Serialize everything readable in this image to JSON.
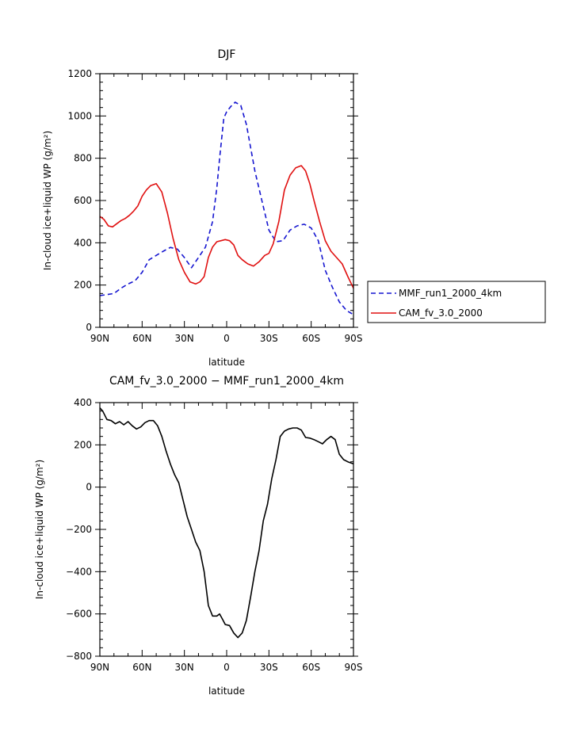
{
  "chart_data": [
    {
      "type": "line",
      "title": "DJF",
      "xlabel": "latitude",
      "ylabel": "In-cloud ice+liquid WP (g/m²)",
      "xlim": [
        90,
        -90
      ],
      "ylim": [
        0,
        1200
      ],
      "x_ticks": [
        {
          "value": 90,
          "label": "90N"
        },
        {
          "value": 60,
          "label": "60N"
        },
        {
          "value": 30,
          "label": "30N"
        },
        {
          "value": 0,
          "label": "0"
        },
        {
          "value": -30,
          "label": "30S"
        },
        {
          "value": -60,
          "label": "60S"
        },
        {
          "value": -90,
          "label": "90S"
        }
      ],
      "y_ticks": [
        0,
        200,
        400,
        600,
        800,
        1000,
        1200
      ],
      "legend_position": "right",
      "series": [
        {
          "name": "MMF_run1_2000_4km",
          "color": "#1515d0",
          "dash": "dashed",
          "x": [
            90,
            85,
            80,
            75,
            70,
            65,
            60,
            55,
            50,
            45,
            40,
            35,
            30,
            25,
            20,
            15,
            10,
            7,
            5,
            2,
            0,
            -3,
            -6,
            -10,
            -14,
            -20,
            -25,
            -30,
            -35,
            -40,
            -45,
            -50,
            -55,
            -60,
            -65,
            -70,
            -75,
            -80,
            -85,
            -90
          ],
          "y": [
            150,
            155,
            160,
            185,
            205,
            220,
            260,
            320,
            340,
            360,
            378,
            370,
            330,
            282,
            330,
            380,
            500,
            660,
            800,
            990,
            1020,
            1045,
            1065,
            1050,
            960,
            740,
            600,
            460,
            405,
            410,
            460,
            480,
            488,
            470,
            410,
            270,
            190,
            120,
            80,
            60
          ]
        },
        {
          "name": "CAM_fv_3.0_2000",
          "color": "#e01010",
          "dash": "solid",
          "x": [
            90,
            87,
            84,
            81,
            78,
            75,
            72,
            69,
            66,
            63,
            60,
            57,
            54,
            50,
            46,
            42,
            38,
            34,
            30,
            26,
            22,
            19,
            16,
            13,
            10,
            7,
            4,
            1,
            -2,
            -5,
            -8,
            -11,
            -15,
            -19,
            -23,
            -27,
            -30,
            -33,
            -37,
            -41,
            -45,
            -49,
            -53,
            -56,
            -59,
            -62,
            -66,
            -70,
            -74,
            -78,
            -82,
            -86,
            -90
          ],
          "y": [
            525,
            510,
            480,
            475,
            490,
            505,
            515,
            530,
            550,
            575,
            620,
            650,
            670,
            680,
            640,
            540,
            420,
            320,
            260,
            215,
            205,
            215,
            240,
            330,
            380,
            405,
            410,
            415,
            410,
            390,
            340,
            320,
            300,
            290,
            310,
            340,
            350,
            395,
            500,
            650,
            720,
            755,
            765,
            740,
            680,
            600,
            500,
            410,
            360,
            330,
            300,
            240,
            185
          ]
        }
      ]
    },
    {
      "type": "line",
      "title": "CAM_fv_3.0_2000 − MMF_run1_2000_4km",
      "xlabel": "latitude",
      "ylabel": "In-cloud ice+liquid WP (g/m²)",
      "xlim": [
        90,
        -90
      ],
      "ylim": [
        -800,
        400
      ],
      "x_ticks": [
        {
          "value": 90,
          "label": "90N"
        },
        {
          "value": 60,
          "label": "60N"
        },
        {
          "value": 30,
          "label": "30N"
        },
        {
          "value": 0,
          "label": "0"
        },
        {
          "value": -30,
          "label": "30S"
        },
        {
          "value": -60,
          "label": "60S"
        },
        {
          "value": -90,
          "label": "90S"
        }
      ],
      "y_ticks": [
        -800,
        -600,
        -400,
        -200,
        0,
        200,
        400
      ],
      "series": [
        {
          "color": "#000000",
          "dash": "solid",
          "x": [
            90,
            88,
            85,
            82,
            79,
            76,
            73,
            70,
            67,
            64,
            61,
            58,
            55,
            52,
            49,
            46,
            43,
            40,
            37,
            34,
            31,
            28,
            25,
            22,
            19,
            16,
            13,
            10,
            7,
            5,
            3,
            1,
            -2,
            -5,
            -8,
            -11,
            -14,
            -17,
            -20,
            -23,
            -26,
            -29,
            -32,
            -35,
            -38,
            -41,
            -44,
            -47,
            -50,
            -53,
            -56,
            -59,
            -62,
            -65,
            -68,
            -71,
            -74,
            -77,
            -80,
            -83,
            -86,
            -88,
            -90
          ],
          "y": [
            375,
            360,
            320,
            315,
            300,
            310,
            295,
            310,
            290,
            275,
            285,
            305,
            315,
            315,
            290,
            240,
            170,
            110,
            60,
            20,
            -60,
            -140,
            -200,
            -260,
            -300,
            -400,
            -560,
            -610,
            -610,
            -600,
            -625,
            -650,
            -655,
            -690,
            -712,
            -690,
            -630,
            -520,
            -400,
            -300,
            -160,
            -80,
            40,
            130,
            240,
            265,
            275,
            280,
            280,
            270,
            235,
            232,
            225,
            215,
            205,
            225,
            240,
            225,
            155,
            130,
            120,
            115,
            110
          ]
        }
      ]
    }
  ]
}
